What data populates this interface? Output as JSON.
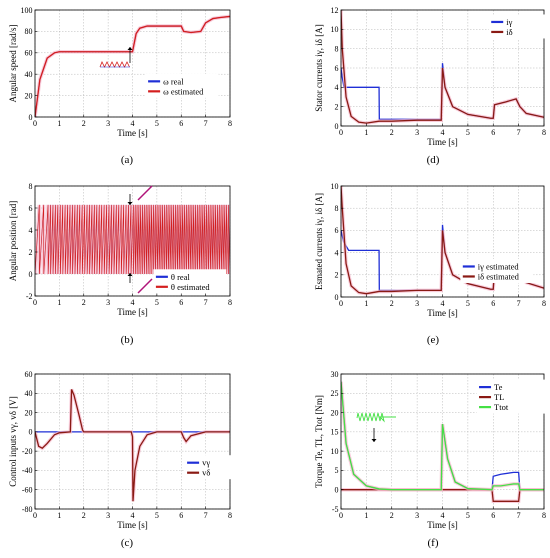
{
  "colors": {
    "blue": "#1f2fd6",
    "red": "#d41e1e",
    "dark_red": "#8a1a14",
    "pink": "#f6b8cc",
    "green": "#44e044",
    "magenta": "#b0147a",
    "grid": "#b5b5b5"
  },
  "chart_data": [
    {
      "id": "a",
      "type": "line",
      "label": "(a)",
      "xlabel": "Time [s]",
      "ylabel": "Angular speed [rad/s]",
      "xlim": [
        0,
        8
      ],
      "ylim": [
        0,
        100
      ],
      "xticks": [
        0,
        1,
        2,
        3,
        4,
        5,
        6,
        7,
        8
      ],
      "yticks": [
        0,
        20,
        40,
        60,
        80,
        100
      ],
      "grid": true,
      "legend": "lower-right",
      "series": [
        {
          "name": "ω real",
          "color": "blue",
          "x": [
            0,
            0.2,
            0.5,
            0.8,
            1.0,
            1.5,
            2.0,
            2.5,
            3.0,
            3.5,
            3.99,
            4.0,
            4.15,
            4.3,
            4.6,
            5.0,
            5.5,
            5.9,
            6.0,
            6.1,
            6.4,
            6.8,
            7.0,
            7.3,
            7.6,
            8.0
          ],
          "y": [
            0,
            35,
            55,
            60,
            61,
            61,
            61,
            61,
            61,
            61,
            61,
            61,
            78,
            83,
            85,
            85,
            85,
            85,
            85,
            80,
            79,
            80,
            88,
            92,
            93,
            94
          ]
        },
        {
          "name": "ω estimated",
          "color": "red",
          "x": [
            0,
            0.2,
            0.5,
            0.8,
            1.0,
            1.5,
            2.0,
            2.5,
            3.0,
            3.5,
            3.99,
            4.0,
            4.15,
            4.3,
            4.6,
            5.0,
            5.5,
            5.9,
            6.0,
            6.1,
            6.4,
            6.8,
            7.0,
            7.3,
            7.6,
            8.0
          ],
          "y": [
            0,
            35,
            55,
            60,
            61,
            61,
            61,
            61,
            61,
            61,
            61,
            61,
            78,
            83,
            85,
            85,
            85,
            85,
            85,
            80,
            79,
            80,
            88,
            92,
            93,
            94
          ]
        }
      ]
    },
    {
      "id": "b",
      "type": "line",
      "label": "(b)",
      "xlabel": "Time [s]",
      "ylabel": "Angular position [rad]",
      "xlim": [
        0,
        8
      ],
      "ylim": [
        -2,
        8
      ],
      "xticks": [
        0,
        1,
        2,
        3,
        4,
        5,
        6,
        7,
        8
      ],
      "yticks": [
        -2,
        0,
        2,
        4,
        6,
        8
      ],
      "grid": true,
      "legend": "lower-right",
      "series": [
        {
          "name": "θ real",
          "color": "blue",
          "pattern": "sawtooth",
          "min": 0,
          "max": 6.28
        },
        {
          "name": "θ estimated",
          "color": "red",
          "pattern": "sawtooth",
          "min": 0,
          "max": 6.28
        }
      ]
    },
    {
      "id": "c",
      "type": "line",
      "label": "(c)",
      "xlabel": "Time [s]",
      "ylabel": "Control inputs vγ, vδ [V]",
      "xlim": [
        0,
        8
      ],
      "ylim": [
        -80,
        60
      ],
      "xticks": [
        0,
        1,
        2,
        3,
        4,
        5,
        6,
        7,
        8
      ],
      "yticks": [
        -80,
        -60,
        -40,
        -20,
        0,
        20,
        40,
        60
      ],
      "grid": true,
      "legend": "lower-right",
      "series": [
        {
          "name": "vγ",
          "color": "blue",
          "x": [
            0,
            8
          ],
          "y": [
            0,
            0
          ]
        },
        {
          "name": "vδ",
          "color": "dark_red",
          "x": [
            0,
            0.15,
            0.3,
            0.5,
            0.8,
            1.0,
            1.45,
            1.5,
            1.6,
            1.8,
            1.95,
            2.0,
            2.5,
            3.0,
            3.5,
            3.95,
            4.0,
            4.02,
            4.1,
            4.3,
            4.6,
            5.0,
            5.5,
            6.0,
            6.1,
            6.2,
            6.4,
            7.0,
            7.5,
            8.0
          ],
          "y": [
            0,
            -15,
            -17,
            -12,
            -3,
            -1,
            0,
            44,
            38,
            18,
            2,
            0,
            0,
            0,
            0,
            0,
            -5,
            -72,
            -40,
            -15,
            -3,
            0,
            0,
            0,
            -6,
            -10,
            -4,
            0,
            0,
            0
          ]
        }
      ]
    },
    {
      "id": "d",
      "type": "line",
      "label": "(d)",
      "xlabel": "Time [s]",
      "ylabel": "Stator currents iγ, iδ [A]",
      "xlim": [
        0,
        8
      ],
      "ylim": [
        0,
        12
      ],
      "xticks": [
        0,
        1,
        2,
        3,
        4,
        5,
        6,
        7,
        8
      ],
      "yticks": [
        0,
        2,
        4,
        6,
        8,
        10,
        12
      ],
      "grid": true,
      "legend": "top-right",
      "series": [
        {
          "name": "iγ",
          "color": "blue",
          "x": [
            0,
            0.05,
            0.12,
            1.5,
            1.51,
            1.8,
            3.95,
            4.0,
            4.1,
            4.4,
            5.0,
            5.9,
            6.0,
            6.05,
            6.5,
            6.9,
            7.05,
            7.3,
            8.0
          ],
          "y": [
            6,
            5,
            4,
            4,
            0.7,
            0.7,
            0.7,
            6.5,
            4,
            2,
            1.2,
            0.8,
            0.8,
            2.2,
            2.5,
            2.8,
            2,
            1.3,
            0.9
          ]
        },
        {
          "name": "iδ",
          "color": "dark_red",
          "x": [
            0,
            0.05,
            0.2,
            0.4,
            0.7,
            1.0,
            1.5,
            2.0,
            3.0,
            3.95,
            4.0,
            4.1,
            4.4,
            5.0,
            5.9,
            6.0,
            6.05,
            6.5,
            6.9,
            7.05,
            7.3,
            8.0
          ],
          "y": [
            12,
            8,
            3,
            1,
            0.4,
            0.3,
            0.5,
            0.5,
            0.6,
            0.6,
            6,
            4,
            2,
            1.2,
            0.8,
            0.8,
            2.2,
            2.5,
            2.8,
            2,
            1.3,
            0.9
          ]
        }
      ]
    },
    {
      "id": "e",
      "type": "line",
      "label": "(e)",
      "xlabel": "Time [s]",
      "ylabel": "Esmated currents iγ, iδ [A]",
      "xlim": [
        0,
        8
      ],
      "ylim": [
        0,
        10
      ],
      "xticks": [
        0,
        1,
        2,
        3,
        4,
        5,
        6,
        7,
        8
      ],
      "yticks": [
        0,
        2,
        4,
        6,
        8,
        10
      ],
      "grid": true,
      "legend": "lower-right",
      "series": [
        {
          "name": "iγ estimated",
          "color": "blue",
          "x": [
            0,
            0.1,
            0.3,
            1.5,
            1.51,
            1.8,
            3.95,
            4.0,
            4.1,
            4.4,
            5.0,
            5.9,
            6.0,
            6.05,
            6.5,
            6.9,
            7.05,
            7.3,
            8.0
          ],
          "y": [
            6,
            5,
            4.2,
            4.2,
            0.6,
            0.6,
            0.6,
            6.5,
            4,
            2,
            1.2,
            0.7,
            0.7,
            2.5,
            2.8,
            2.8,
            2,
            1.3,
            0.8
          ]
        },
        {
          "name": "iδ estimated",
          "color": "dark_red",
          "x": [
            0,
            0.05,
            0.2,
            0.4,
            0.7,
            1.0,
            1.5,
            2.0,
            3.0,
            3.95,
            4.0,
            4.1,
            4.4,
            5.0,
            5.9,
            6.0,
            6.05,
            6.5,
            6.9,
            7.05,
            7.3,
            8.0
          ],
          "y": [
            10,
            8,
            3,
            1,
            0.4,
            0.3,
            0.5,
            0.5,
            0.6,
            0.6,
            6,
            4,
            2,
            1.2,
            0.7,
            0.7,
            2.5,
            2.8,
            2.8,
            2,
            1.3,
            0.8
          ]
        }
      ]
    },
    {
      "id": "f",
      "type": "line",
      "label": "(f)",
      "xlabel": "Time [s]",
      "ylabel": "Torque Te, TL, Ttot [Nm]",
      "xlim": [
        0,
        8
      ],
      "ylim": [
        -5,
        30
      ],
      "xticks": [
        0,
        1,
        2,
        3,
        4,
        5,
        6,
        7,
        8
      ],
      "yticks": [
        -5,
        0,
        5,
        10,
        15,
        20,
        25,
        30
      ],
      "grid": true,
      "legend": "top-right",
      "series": [
        {
          "name": "Te",
          "color": "blue",
          "x": [
            0,
            0.2,
            0.5,
            1.0,
            1.5,
            2.0,
            3.0,
            3.95,
            4.0,
            4.2,
            4.5,
            5.0,
            5.95,
            6.0,
            6.3,
            6.8,
            7.0,
            7.05,
            8.0
          ],
          "y": [
            28,
            12,
            4,
            1,
            0.2,
            0,
            0,
            0,
            17,
            8,
            2,
            0.3,
            0,
            3.5,
            4,
            4.5,
            4.5,
            0,
            0
          ]
        },
        {
          "name": "TL",
          "color": "dark_red",
          "x": [
            0,
            5.95,
            6.0,
            7.0,
            7.05,
            8.0
          ],
          "y": [
            0,
            0,
            -3,
            -3,
            0,
            0
          ]
        },
        {
          "name": "Ttot",
          "color": "green",
          "x": [
            0,
            0.2,
            0.5,
            1.0,
            1.5,
            2.0,
            3.0,
            3.95,
            4.0,
            4.2,
            4.5,
            5.0,
            5.95,
            6.0,
            6.3,
            6.8,
            7.0,
            7.05,
            8.0
          ],
          "y": [
            28,
            12,
            4,
            1,
            0.2,
            0,
            0,
            0,
            17,
            8,
            2,
            0.3,
            0,
            1,
            1,
            1.5,
            1.5,
            0,
            0
          ]
        }
      ]
    }
  ]
}
